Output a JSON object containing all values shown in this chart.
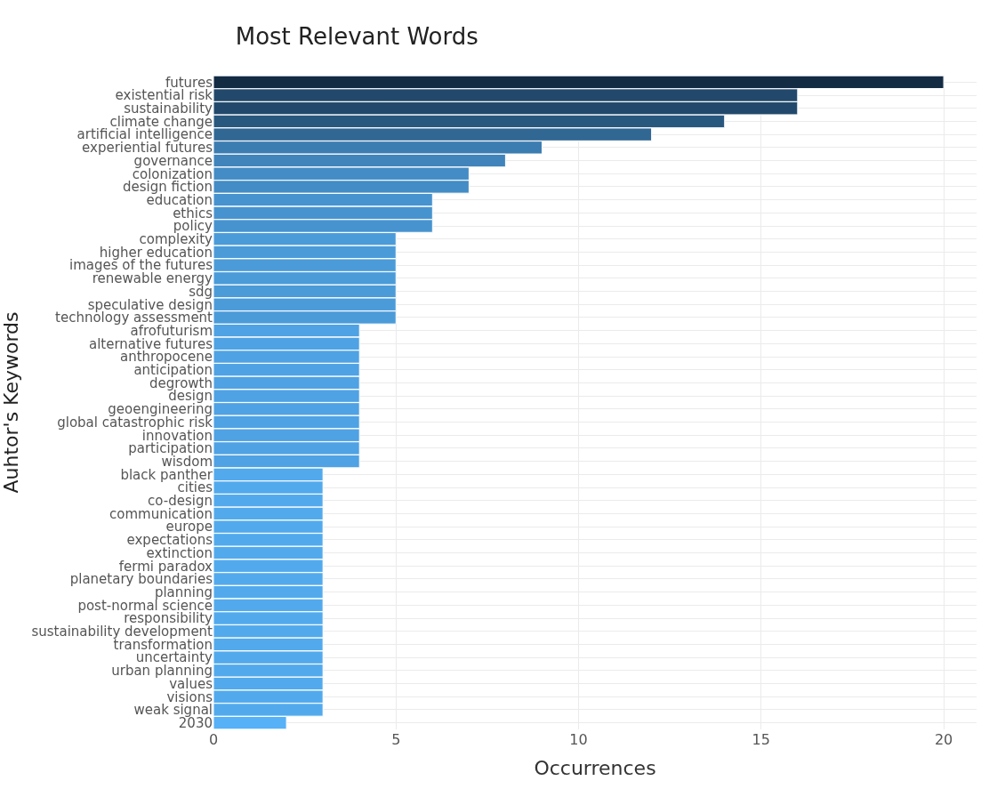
{
  "chart_data": {
    "type": "bar",
    "orientation": "horizontal",
    "title": "Most Relevant Words",
    "xlabel": "Occurrences",
    "ylabel": "Auhtor's Keywords",
    "categories": [
      "futures",
      "existential risk",
      "sustainability",
      "climate change",
      "artificial intelligence",
      "experiential futures",
      "governance",
      "colonization",
      "design fiction",
      "education",
      "ethics",
      "policy",
      "complexity",
      "higher education",
      "images of the futures",
      "renewable energy",
      "sdg",
      "speculative design",
      "technology assessment",
      "afrofuturism",
      "alternative futures",
      "anthropocene",
      "anticipation",
      "degrowth",
      "design",
      "geoengineering",
      "global catastrophic risk",
      "innovation",
      "participation",
      "wisdom",
      "black panther",
      "cities",
      "co-design",
      "communication",
      "europe",
      "expectations",
      "extinction",
      "fermi paradox",
      "planetary boundaries",
      "planning",
      "post-normal science",
      "responsibility",
      "sustainability development",
      "transformation",
      "uncertainty",
      "urban planning",
      "values",
      "visions",
      "weak signal",
      "2030"
    ],
    "values": [
      20,
      16,
      16,
      14,
      12,
      9,
      8,
      7,
      7,
      6,
      6,
      6,
      5,
      5,
      5,
      5,
      5,
      5,
      5,
      4,
      4,
      4,
      4,
      4,
      4,
      4,
      4,
      4,
      4,
      4,
      3,
      3,
      3,
      3,
      3,
      3,
      3,
      3,
      3,
      3,
      3,
      3,
      3,
      3,
      3,
      3,
      3,
      3,
      3,
      2
    ],
    "colors": [
      "#132b43",
      "#22496b",
      "#22496b",
      "#29587f",
      "#316793",
      "#3c7db1",
      "#4084bb",
      "#438cc5",
      "#438cc5",
      "#4793cf",
      "#4793cf",
      "#4793cf",
      "#4b9bd9",
      "#4b9bd9",
      "#4b9bd9",
      "#4b9bd9",
      "#4b9bd9",
      "#4b9bd9",
      "#4b9bd9",
      "#4fa2e3",
      "#4fa2e3",
      "#4fa2e3",
      "#4fa2e3",
      "#4fa2e3",
      "#4fa2e3",
      "#4fa2e3",
      "#4fa2e3",
      "#4fa2e3",
      "#4fa2e3",
      "#4fa2e3",
      "#52aaed",
      "#52aaed",
      "#52aaed",
      "#52aaed",
      "#52aaed",
      "#52aaed",
      "#52aaed",
      "#52aaed",
      "#52aaed",
      "#52aaed",
      "#52aaed",
      "#52aaed",
      "#52aaed",
      "#52aaed",
      "#52aaed",
      "#52aaed",
      "#52aaed",
      "#52aaed",
      "#52aaed",
      "#56b1f7"
    ],
    "xlim": [
      0,
      20.9
    ],
    "xticks": [
      0,
      5,
      10,
      15,
      20
    ],
    "grid": true,
    "legend": false
  }
}
